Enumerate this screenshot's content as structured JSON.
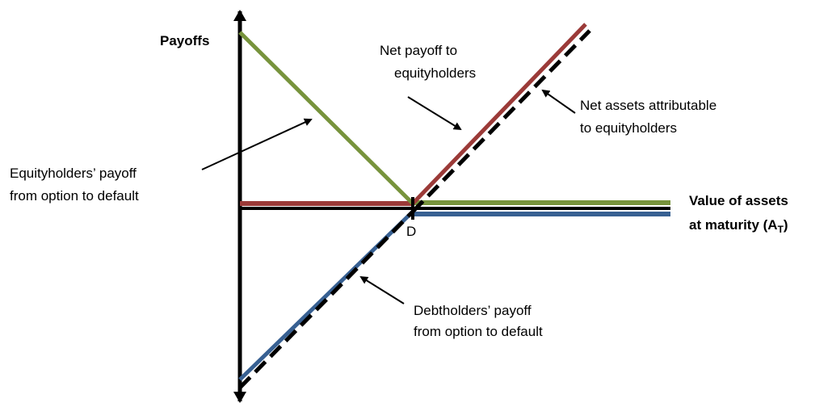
{
  "axis_y_label": "Payoffs",
  "axis_x_label": {
    "line1": "Value of assets",
    "line2_before": "at maturity (A",
    "line2_sub": "T",
    "line2_after": ")"
  },
  "point_label": "D",
  "annotations": [
    {
      "lines": [
        "Net payoff to",
        "equityholders"
      ]
    },
    {
      "lines": [
        "Net assets attributable",
        "to equityholders"
      ]
    },
    {
      "lines": [
        "Equityholders’ payoff",
        "from option to default"
      ]
    },
    {
      "lines": [
        "Debtholders’ payoff",
        "from option to default"
      ]
    }
  ]
}
